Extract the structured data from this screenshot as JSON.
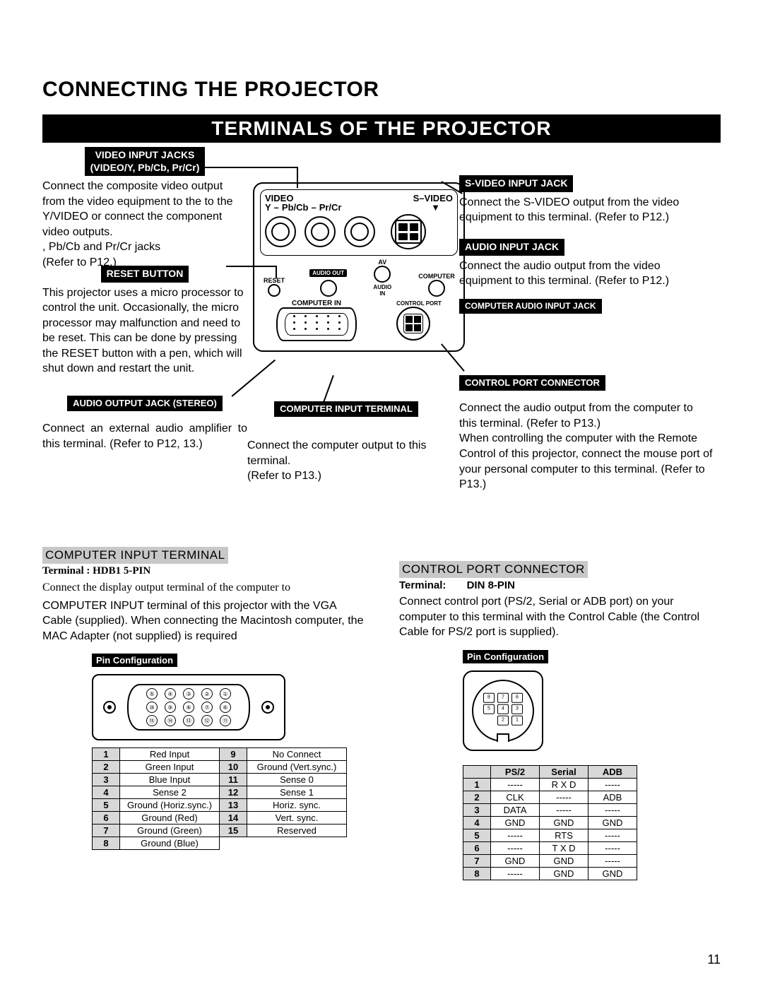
{
  "title": "CONNECTING THE PROJECTOR",
  "banner": "TERMINALS OF THE PROJECTOR",
  "page_number": "11",
  "left": {
    "video_jacks": {
      "label": "VIDEO INPUT JACKS\n(VIDEO/Y, Pb/Cb, Pr/Cr)",
      "desc": "Connect the composite video output from the video equipment to the to the Y/VIDEO or connect the component video outputs.\n, Pb/Cb and Pr/Cr jacks\n (Refer to P12.)"
    },
    "reset": {
      "label": "RESET BUTTON",
      "desc": "This projector uses a micro processor to control the unit. Occasionally, the micro processor may malfunction and need to be reset. This can be done by pressing the RESET button with a pen, which will shut down and restart the unit."
    },
    "audio_out": {
      "label": "AUDIO OUTPUT JACK (STEREO)",
      "desc": "Connect an external audio amplifier to this terminal.\n(Refer to P12, 13.)"
    }
  },
  "mid": {
    "computer_input": {
      "label": "COMPUTER INPUT TERMINAL",
      "desc": "Connect the computer output to this terminal.\n(Refer to P13.)"
    }
  },
  "right": {
    "svideo": {
      "label": "S-VIDEO INPUT JACK",
      "desc": "Connect the S-VIDEO output from the video equipment to this terminal. (Refer to P12.)"
    },
    "audio_in": {
      "label": "AUDIO INPUT JACK",
      "desc": "Connect the audio output from the video equipment to this terminal. (Refer to P12.)"
    },
    "comp_audio": {
      "label": "COMPUTER AUDIO INPUT JACK"
    },
    "control_port": {
      "label": "CONTROL PORT CONNECTOR",
      "desc": "Connect the audio output from the computer to this terminal. (Refer to P13.)\nWhen controlling the computer with the Remote Control of this projector, connect the mouse port of your personal computer to this terminal. (Refer to P13.)"
    }
  },
  "diagram": {
    "video": "VIDEO",
    "svideo": "S–VIDEO",
    "y": "Y",
    "pbcb": "Pb/Cb",
    "prcr": "Pr/Cr",
    "reset": "RESET",
    "audio_out": "AUDIO  OUT",
    "av": "AV",
    "computer": "COMPUTER",
    "audio_in": "AUDIO\nIN",
    "computer_in": "COMPUTER IN",
    "control_port": "CONTROL  PORT"
  },
  "section2": {
    "left": {
      "heading": "COMPUTER INPUT TERMINAL",
      "terminal": "Terminal : HDB1 5-PIN",
      "desc_line1": "Connect the display output terminal of the computer to",
      "desc_rest": "COMPUTER INPUT terminal of this projector with the VGA Cable (supplied). When connecting the Macintosh computer, the MAC Adapter (not supplied) is required",
      "pin_cfg": "Pin Configuration",
      "table_left": [
        [
          "1",
          "Red Input"
        ],
        [
          "2",
          "Green Input"
        ],
        [
          "3",
          "Blue Input"
        ],
        [
          "4",
          "Sense 2"
        ],
        [
          "5",
          "Ground (Horiz.sync.)"
        ],
        [
          "6",
          "Ground (Red)"
        ],
        [
          "7",
          "Ground (Green)"
        ],
        [
          "8",
          "Ground (Blue)"
        ]
      ],
      "table_right": [
        [
          "9",
          "No Connect"
        ],
        [
          "10",
          "Ground (Vert.sync.)"
        ],
        [
          "11",
          "Sense 0"
        ],
        [
          "12",
          "Sense 1"
        ],
        [
          "13",
          "Horiz. sync."
        ],
        [
          "14",
          "Vert. sync."
        ],
        [
          "15",
          "Reserved"
        ]
      ]
    },
    "right": {
      "heading": "CONTROL PORT CONNECTOR",
      "terminal": "Terminal:       DIN 8-PIN",
      "desc": "Connect control port (PS/2, Serial or ADB port) on your computer to this terminal with the Control Cable (the Control Cable for PS/2 port is supplied).",
      "pin_cfg": "Pin Configuration",
      "headers": [
        "",
        "PS/2",
        "Serial",
        "ADB"
      ],
      "rows": [
        [
          "1",
          "-----",
          "R X D",
          "-----"
        ],
        [
          "2",
          "CLK",
          "-----",
          "ADB"
        ],
        [
          "3",
          "DATA",
          "-----",
          "-----"
        ],
        [
          "4",
          "GND",
          "GND",
          "GND"
        ],
        [
          "5",
          "-----",
          "RTS",
          "-----"
        ],
        [
          "6",
          "-----",
          "T X D",
          "-----"
        ],
        [
          "7",
          "GND",
          "GND",
          "-----"
        ],
        [
          "8",
          "-----",
          "GND",
          "GND"
        ]
      ]
    }
  }
}
